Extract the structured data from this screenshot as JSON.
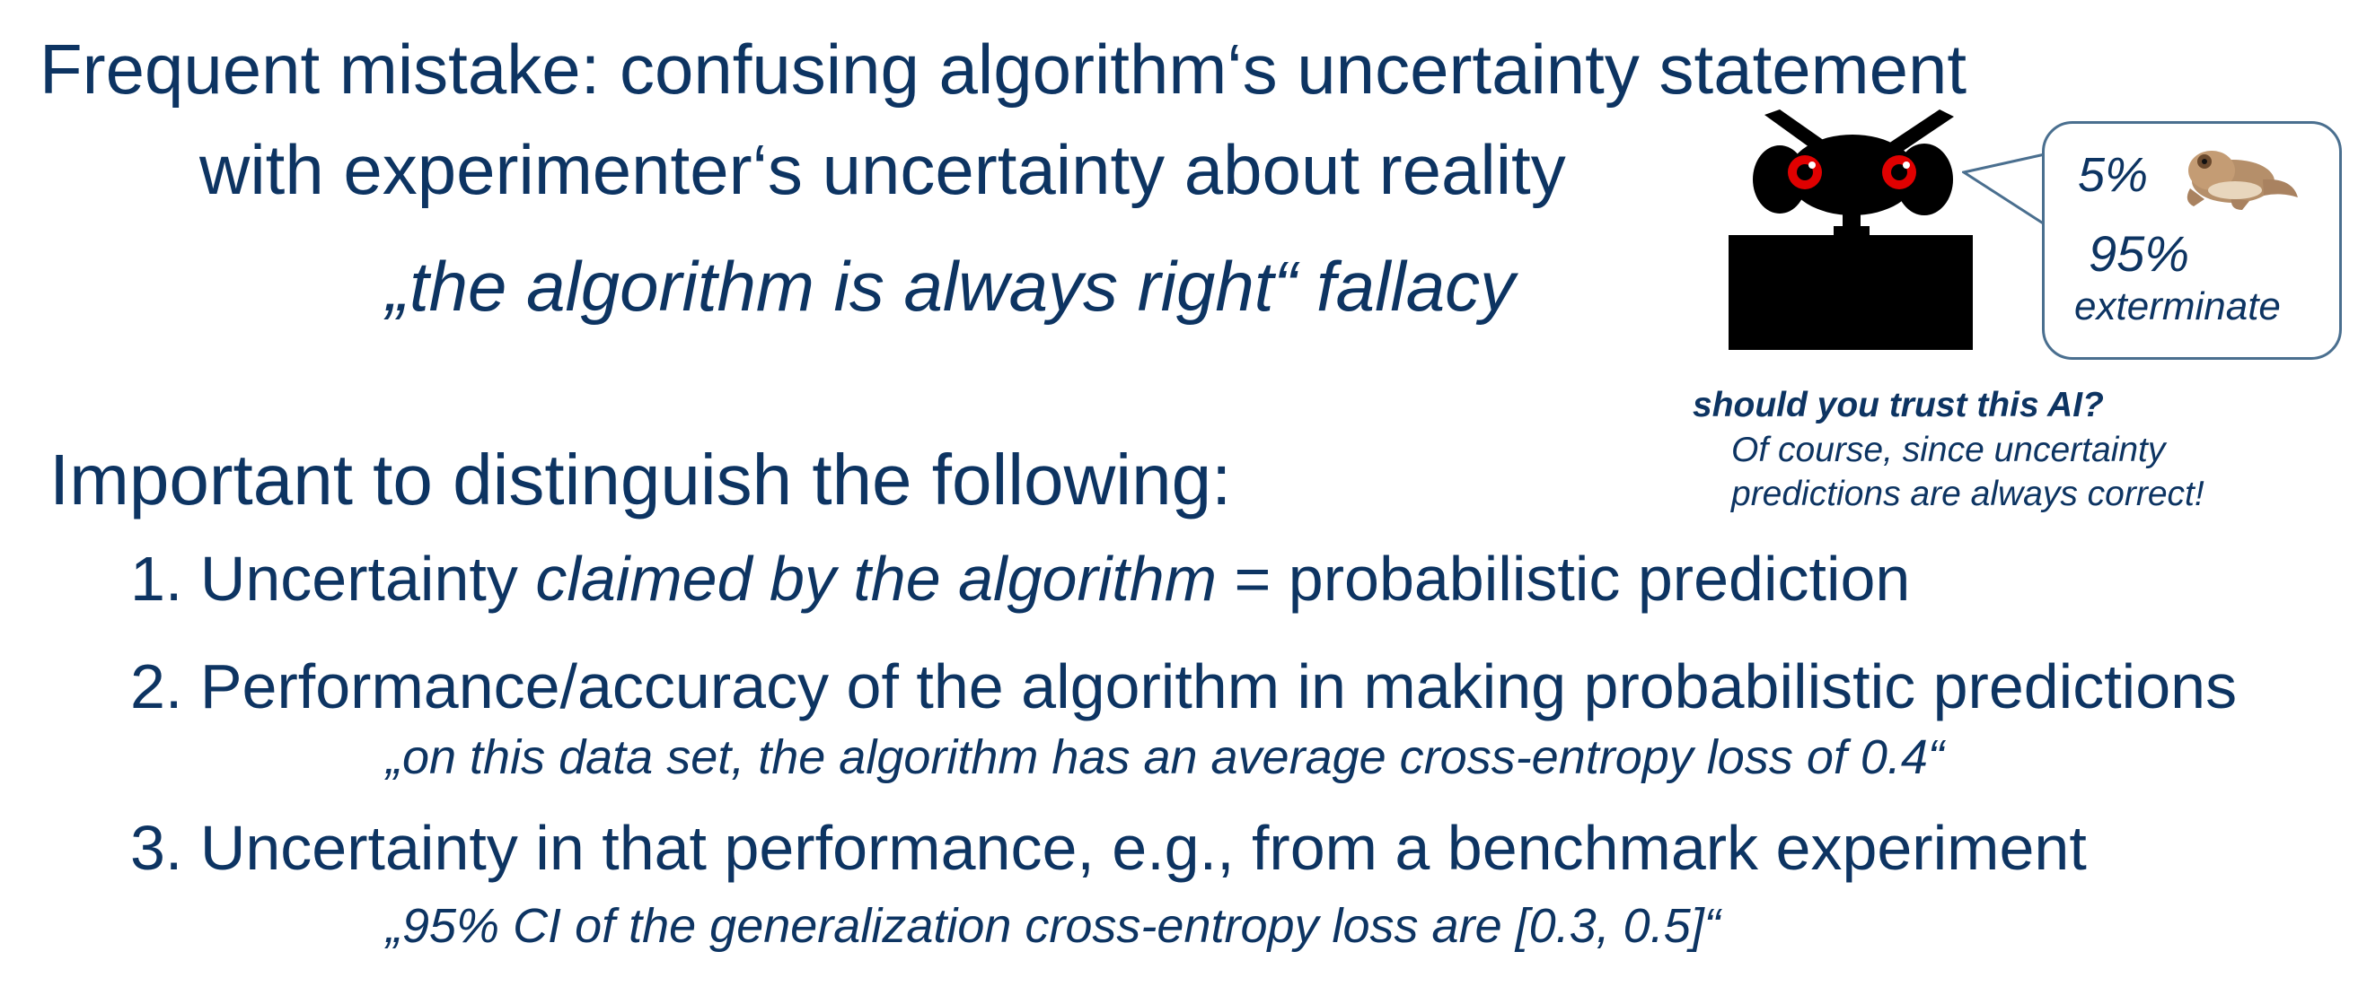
{
  "title": {
    "line1": "Frequent mistake: confusing algorithm‘s uncertainty statement",
    "line2": "with experimenter‘s uncertainty about reality"
  },
  "subtitle": "„the algorithm is always right“ fallacy",
  "robot_bubble": {
    "frog_percent": "5%",
    "exterminate_percent": "95%",
    "exterminate_label": "exterminate"
  },
  "trust": {
    "question": "should you trust this AI?",
    "answer_line1": "Of course, since uncertainty",
    "answer_line2": "predictions are always correct!"
  },
  "heading": "Important to distinguish the following:",
  "items": [
    {
      "prefix": "1. Uncertainty ",
      "emphasis": "claimed by the algorithm",
      "suffix": " = probabilistic prediction"
    },
    {
      "text": "2. Performance/accuracy of the algorithm in making probabilistic predictions",
      "quote": "„on this data set, the algorithm has an average cross-entropy loss of 0.4“"
    },
    {
      "text": "3. Uncertainty in that performance, e.g., from a benchmark experiment",
      "quote": "„95% CI of the generalization cross-entropy loss are [0.3, 0.5]“"
    }
  ],
  "colors": {
    "text": "#0d3462",
    "robot_eyes": "#e00000",
    "bubble_border": "#4a6f8f"
  }
}
